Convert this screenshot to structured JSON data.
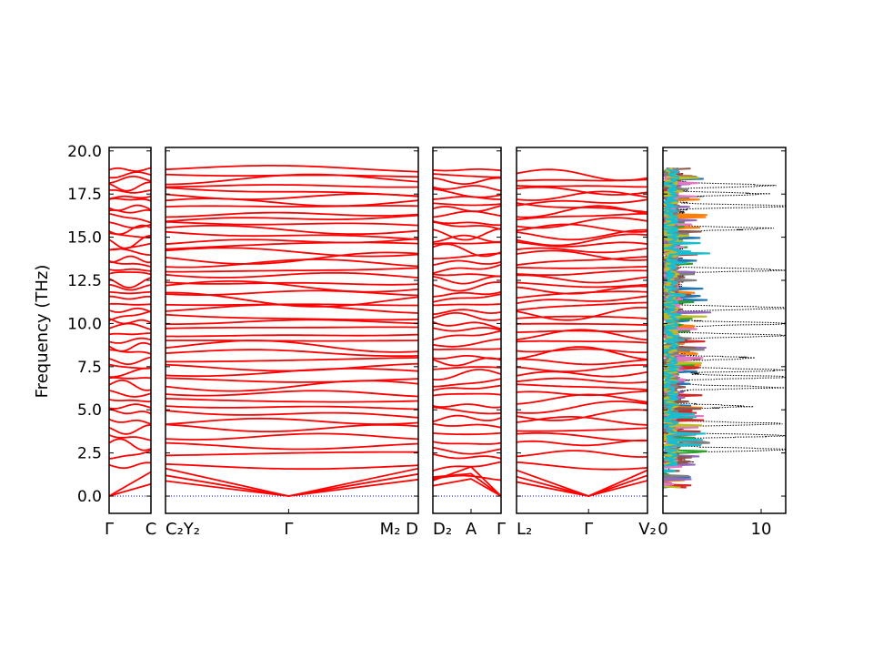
{
  "chart_data": {
    "type": "line",
    "ylabel": "Frequency (THz)",
    "ylim": [
      -1.0,
      20.2
    ],
    "y_ticks": [
      "0.0",
      "2.5",
      "5.0",
      "7.5",
      "10.0",
      "12.5",
      "15.0",
      "17.5",
      "20.0"
    ],
    "y_tick_values": [
      0.0,
      2.5,
      5.0,
      7.5,
      10.0,
      12.5,
      15.0,
      17.5,
      20.0
    ],
    "colors": {
      "band": "#ff0000",
      "zero_line": "#0000cc",
      "dos_total": "#000000"
    },
    "band_segments": [
      {
        "start_label": "Γ",
        "end_label": "C",
        "branch_count": 48,
        "fmin": 1.8,
        "fmax": 18.9,
        "acoustic_end": 1.4
      },
      {
        "start_label": "C₂Y₂",
        "mid_label": "Γ",
        "end_label": "M₂ D",
        "branch_count": 48,
        "fmin": 1.8,
        "fmax": 18.9,
        "acoustic_end": 1.6
      },
      {
        "start_label": "D₂",
        "mid_label": "A",
        "end_label": "Γ",
        "branch_count": 48,
        "fmin": 1.0,
        "fmax": 18.9,
        "acoustic_end": 1.3
      },
      {
        "start_label": "L₂",
        "mid_label": "Γ",
        "end_label": "V₂",
        "branch_count": 48,
        "fmin": 1.8,
        "fmax": 18.6,
        "acoustic_end": 1.5
      }
    ],
    "dos": {
      "x_ticks": [
        "0",
        "10"
      ],
      "x_tick_values": [
        0,
        10
      ],
      "xlim": [
        0,
        12.5
      ],
      "total_peaks": [
        {
          "freq": 2.7,
          "dos": 12.0
        },
        {
          "freq": 3.5,
          "dos": 11.0
        },
        {
          "freq": 4.2,
          "dos": 10.5
        },
        {
          "freq": 5.2,
          "dos": 7.5
        },
        {
          "freq": 6.3,
          "dos": 10.8
        },
        {
          "freq": 6.9,
          "dos": 12.0
        },
        {
          "freq": 7.3,
          "dos": 11.0
        },
        {
          "freq": 8.0,
          "dos": 8.5
        },
        {
          "freq": 9.3,
          "dos": 12.0
        },
        {
          "freq": 10.0,
          "dos": 11.5
        },
        {
          "freq": 10.9,
          "dos": 12.0
        },
        {
          "freq": 13.1,
          "dos": 11.0
        },
        {
          "freq": 15.5,
          "dos": 9.5
        },
        {
          "freq": 16.8,
          "dos": 12.0
        },
        {
          "freq": 17.5,
          "dos": 9.0
        },
        {
          "freq": 18.0,
          "dos": 10.0
        }
      ],
      "partial_colors": [
        "#1f77b4",
        "#ff7f0e",
        "#2ca02c",
        "#d62728",
        "#9467bd",
        "#8c564b",
        "#e377c2",
        "#7f7f7f",
        "#bcbd22",
        "#17becf"
      ]
    }
  }
}
